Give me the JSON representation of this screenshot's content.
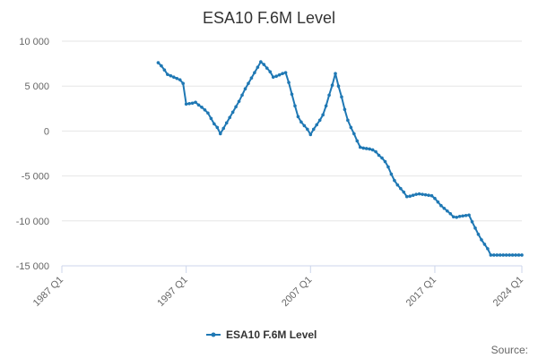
{
  "chart_data": {
    "type": "line",
    "title": "ESA10 F.6M Level",
    "xlabel": "",
    "ylabel": "",
    "series_color": "#1f78b4",
    "x_tick_labels": [
      "1987 Q1",
      "1997 Q1",
      "2007 Q1",
      "2017 Q1",
      "2024 Q1"
    ],
    "x_tick_years": [
      1987,
      1997,
      2007,
      2017,
      2024
    ],
    "xlim": [
      1987,
      2024
    ],
    "y_tick_labels": [
      "10 000",
      "5 000",
      "0",
      "-5 000",
      "-10 000",
      "-15 000"
    ],
    "y_tick_values": [
      10000,
      5000,
      0,
      -5000,
      -10000,
      -15000
    ],
    "ylim": [
      -15000,
      10000
    ],
    "grid": true,
    "legend_position": "bottom-center",
    "series": [
      {
        "name": "ESA10 F.6M Level",
        "points": [
          [
            1994.75,
            7600
          ],
          [
            1995.0,
            7250
          ],
          [
            1995.25,
            6800
          ],
          [
            1995.5,
            6300
          ],
          [
            1995.75,
            6150
          ],
          [
            1996.0,
            6000
          ],
          [
            1996.25,
            5850
          ],
          [
            1996.5,
            5700
          ],
          [
            1996.75,
            5300
          ],
          [
            1997.0,
            3000
          ],
          [
            1997.25,
            3050
          ],
          [
            1997.5,
            3100
          ],
          [
            1997.75,
            3200
          ],
          [
            1998.0,
            2900
          ],
          [
            1998.25,
            2650
          ],
          [
            1998.5,
            2350
          ],
          [
            1998.75,
            2000
          ],
          [
            1999.0,
            1400
          ],
          [
            1999.25,
            800
          ],
          [
            1999.5,
            400
          ],
          [
            1999.75,
            -300
          ],
          [
            2000.0,
            300
          ],
          [
            2000.25,
            900
          ],
          [
            2000.5,
            1500
          ],
          [
            2000.75,
            2100
          ],
          [
            2001.0,
            2700
          ],
          [
            2001.25,
            3300
          ],
          [
            2001.5,
            4000
          ],
          [
            2001.75,
            4700
          ],
          [
            2002.0,
            5300
          ],
          [
            2002.25,
            5900
          ],
          [
            2002.5,
            6500
          ],
          [
            2002.75,
            7100
          ],
          [
            2003.0,
            7700
          ],
          [
            2003.25,
            7400
          ],
          [
            2003.5,
            7000
          ],
          [
            2003.75,
            6600
          ],
          [
            2004.0,
            6000
          ],
          [
            2004.25,
            6100
          ],
          [
            2004.5,
            6250
          ],
          [
            2004.75,
            6400
          ],
          [
            2005.0,
            6500
          ],
          [
            2005.25,
            5400
          ],
          [
            2005.5,
            4100
          ],
          [
            2005.75,
            2800
          ],
          [
            2006.0,
            1600
          ],
          [
            2006.25,
            1000
          ],
          [
            2006.5,
            600
          ],
          [
            2006.75,
            200
          ],
          [
            2007.0,
            -400
          ],
          [
            2007.25,
            200
          ],
          [
            2007.5,
            700
          ],
          [
            2007.75,
            1200
          ],
          [
            2008.0,
            1800
          ],
          [
            2008.25,
            2800
          ],
          [
            2008.5,
            4000
          ],
          [
            2008.75,
            5100
          ],
          [
            2009.0,
            6400
          ],
          [
            2009.25,
            5000
          ],
          [
            2009.5,
            3800
          ],
          [
            2009.75,
            2400
          ],
          [
            2010.0,
            1200
          ],
          [
            2010.25,
            400
          ],
          [
            2010.5,
            -300
          ],
          [
            2010.75,
            -1100
          ],
          [
            2011.0,
            -1800
          ],
          [
            2011.25,
            -1900
          ],
          [
            2011.5,
            -1950
          ],
          [
            2011.75,
            -2000
          ],
          [
            2012.0,
            -2100
          ],
          [
            2012.25,
            -2300
          ],
          [
            2012.5,
            -2700
          ],
          [
            2012.75,
            -3000
          ],
          [
            2013.0,
            -3400
          ],
          [
            2013.25,
            -4000
          ],
          [
            2013.5,
            -4800
          ],
          [
            2013.75,
            -5500
          ],
          [
            2014.0,
            -6000
          ],
          [
            2014.25,
            -6400
          ],
          [
            2014.5,
            -6800
          ],
          [
            2014.75,
            -7300
          ],
          [
            2015.0,
            -7250
          ],
          [
            2015.25,
            -7150
          ],
          [
            2015.5,
            -7050
          ],
          [
            2015.75,
            -7000
          ],
          [
            2016.0,
            -7050
          ],
          [
            2016.25,
            -7100
          ],
          [
            2016.5,
            -7150
          ],
          [
            2016.75,
            -7200
          ],
          [
            2017.0,
            -7500
          ],
          [
            2017.25,
            -7900
          ],
          [
            2017.5,
            -8300
          ],
          [
            2017.75,
            -8600
          ],
          [
            2018.0,
            -8900
          ],
          [
            2018.25,
            -9200
          ],
          [
            2018.5,
            -9550
          ],
          [
            2018.75,
            -9600
          ],
          [
            2019.0,
            -9500
          ],
          [
            2019.25,
            -9450
          ],
          [
            2019.5,
            -9400
          ],
          [
            2019.75,
            -9350
          ],
          [
            2020.0,
            -10100
          ],
          [
            2020.25,
            -10800
          ],
          [
            2020.5,
            -11500
          ],
          [
            2020.75,
            -12100
          ],
          [
            2021.0,
            -12600
          ],
          [
            2021.25,
            -13100
          ],
          [
            2021.5,
            -13800
          ],
          [
            2021.75,
            -13800
          ],
          [
            2022.0,
            -13800
          ],
          [
            2022.25,
            -13800
          ],
          [
            2022.5,
            -13800
          ],
          [
            2022.75,
            -13800
          ],
          [
            2023.0,
            -13800
          ],
          [
            2023.25,
            -13800
          ],
          [
            2023.5,
            -13800
          ],
          [
            2023.75,
            -13800
          ],
          [
            2024.0,
            -13800
          ]
        ]
      }
    ]
  },
  "legend": {
    "label": "ESA10 F.6M Level"
  },
  "footer": {
    "source_label": "Source:"
  }
}
